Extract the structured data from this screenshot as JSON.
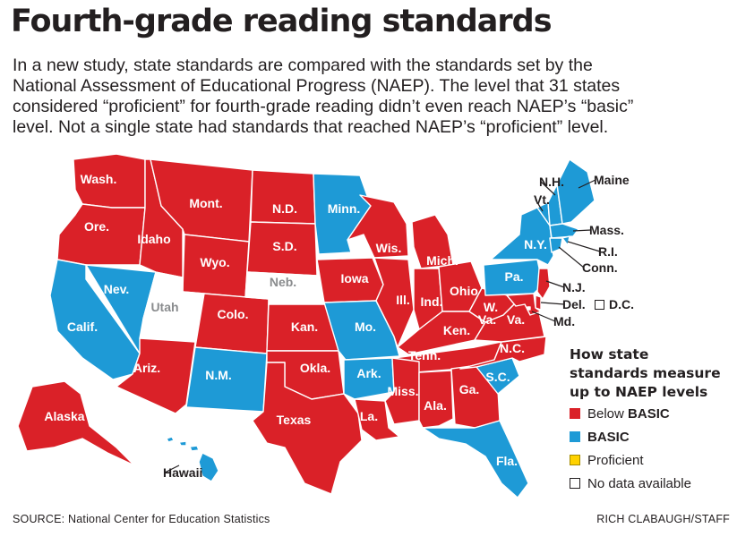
{
  "title": "Fourth-grade reading standards",
  "intro": [
    "In a new study, state standards are compared with the standards set by the",
    "National Assessment of Educational Progress (NAEP). The level that 31 states",
    "considered “proficient” for fourth-grade reading didn’t even reach NAEP’s “basic”",
    "level. Not a single state had standards that reached NAEP’s “proficient” level."
  ],
  "colors": {
    "below_basic": "#da2128",
    "basic": "#1e9ad6",
    "proficient": "#ffd200",
    "no_data": "#ffffff"
  },
  "legend": {
    "title_lines": [
      "How state",
      "standards measure",
      "up to NAEP levels"
    ],
    "items": [
      {
        "key": "below_basic",
        "prefix": "Below ",
        "bold": "BASIC"
      },
      {
        "key": "basic",
        "prefix": "",
        "bold": "BASIC"
      },
      {
        "key": "proficient",
        "prefix": "Proficient",
        "bold": ""
      },
      {
        "key": "no_data",
        "prefix": "No data available",
        "bold": ""
      }
    ]
  },
  "states": [
    {
      "abbr": "Wash.",
      "level": "below_basic"
    },
    {
      "abbr": "Ore.",
      "level": "below_basic"
    },
    {
      "abbr": "Calif.",
      "level": "basic"
    },
    {
      "abbr": "Nev.",
      "level": "basic"
    },
    {
      "abbr": "Idaho",
      "level": "below_basic"
    },
    {
      "abbr": "Mont.",
      "level": "below_basic"
    },
    {
      "abbr": "Wyo.",
      "level": "below_basic"
    },
    {
      "abbr": "Utah",
      "level": "no_data"
    },
    {
      "abbr": "Colo.",
      "level": "below_basic"
    },
    {
      "abbr": "Ariz.",
      "level": "below_basic"
    },
    {
      "abbr": "N.M.",
      "level": "basic"
    },
    {
      "abbr": "N.D.",
      "level": "below_basic"
    },
    {
      "abbr": "S.D.",
      "level": "below_basic"
    },
    {
      "abbr": "Neb.",
      "level": "no_data"
    },
    {
      "abbr": "Kan.",
      "level": "below_basic"
    },
    {
      "abbr": "Okla.",
      "level": "below_basic"
    },
    {
      "abbr": "Texas",
      "level": "below_basic"
    },
    {
      "abbr": "Minn.",
      "level": "basic"
    },
    {
      "abbr": "Iowa",
      "level": "below_basic"
    },
    {
      "abbr": "Mo.",
      "level": "basic"
    },
    {
      "abbr": "Ark.",
      "level": "basic"
    },
    {
      "abbr": "La.",
      "level": "below_basic"
    },
    {
      "abbr": "Wis.",
      "level": "below_basic"
    },
    {
      "abbr": "Ill.",
      "level": "below_basic"
    },
    {
      "abbr": "Mich.",
      "level": "below_basic"
    },
    {
      "abbr": "Ind.",
      "level": "below_basic"
    },
    {
      "abbr": "Ohio",
      "level": "below_basic"
    },
    {
      "abbr": "Ken.",
      "level": "below_basic"
    },
    {
      "abbr": "Tenn.",
      "level": "below_basic"
    },
    {
      "abbr": "Miss.",
      "level": "below_basic"
    },
    {
      "abbr": "Ala.",
      "level": "below_basic"
    },
    {
      "abbr": "Ga.",
      "level": "below_basic"
    },
    {
      "abbr": "Fla.",
      "level": "basic"
    },
    {
      "abbr": "S.C.",
      "level": "basic"
    },
    {
      "abbr": "N.C.",
      "level": "below_basic"
    },
    {
      "abbr": "Va.",
      "level": "below_basic"
    },
    {
      "abbr": "W. Va.",
      "level": "below_basic"
    },
    {
      "abbr": "Pa.",
      "level": "basic"
    },
    {
      "abbr": "N.Y.",
      "level": "basic"
    },
    {
      "abbr": "Vt.",
      "level": "basic"
    },
    {
      "abbr": "N.H.",
      "level": "basic"
    },
    {
      "abbr": "Maine",
      "level": "basic"
    },
    {
      "abbr": "Mass.",
      "level": "basic"
    },
    {
      "abbr": "R.I.",
      "level": "basic"
    },
    {
      "abbr": "Conn.",
      "level": "basic"
    },
    {
      "abbr": "N.J.",
      "level": "below_basic"
    },
    {
      "abbr": "Del.",
      "level": "below_basic"
    },
    {
      "abbr": "Md.",
      "level": "below_basic"
    },
    {
      "abbr": "D.C.",
      "level": "no_data"
    },
    {
      "abbr": "Alaska",
      "level": "below_basic"
    },
    {
      "abbr": "Hawaii",
      "level": "basic"
    }
  ],
  "source": "SOURCE: National Center for Education Statistics",
  "credit": "RICH CLABAUGH/STAFF"
}
